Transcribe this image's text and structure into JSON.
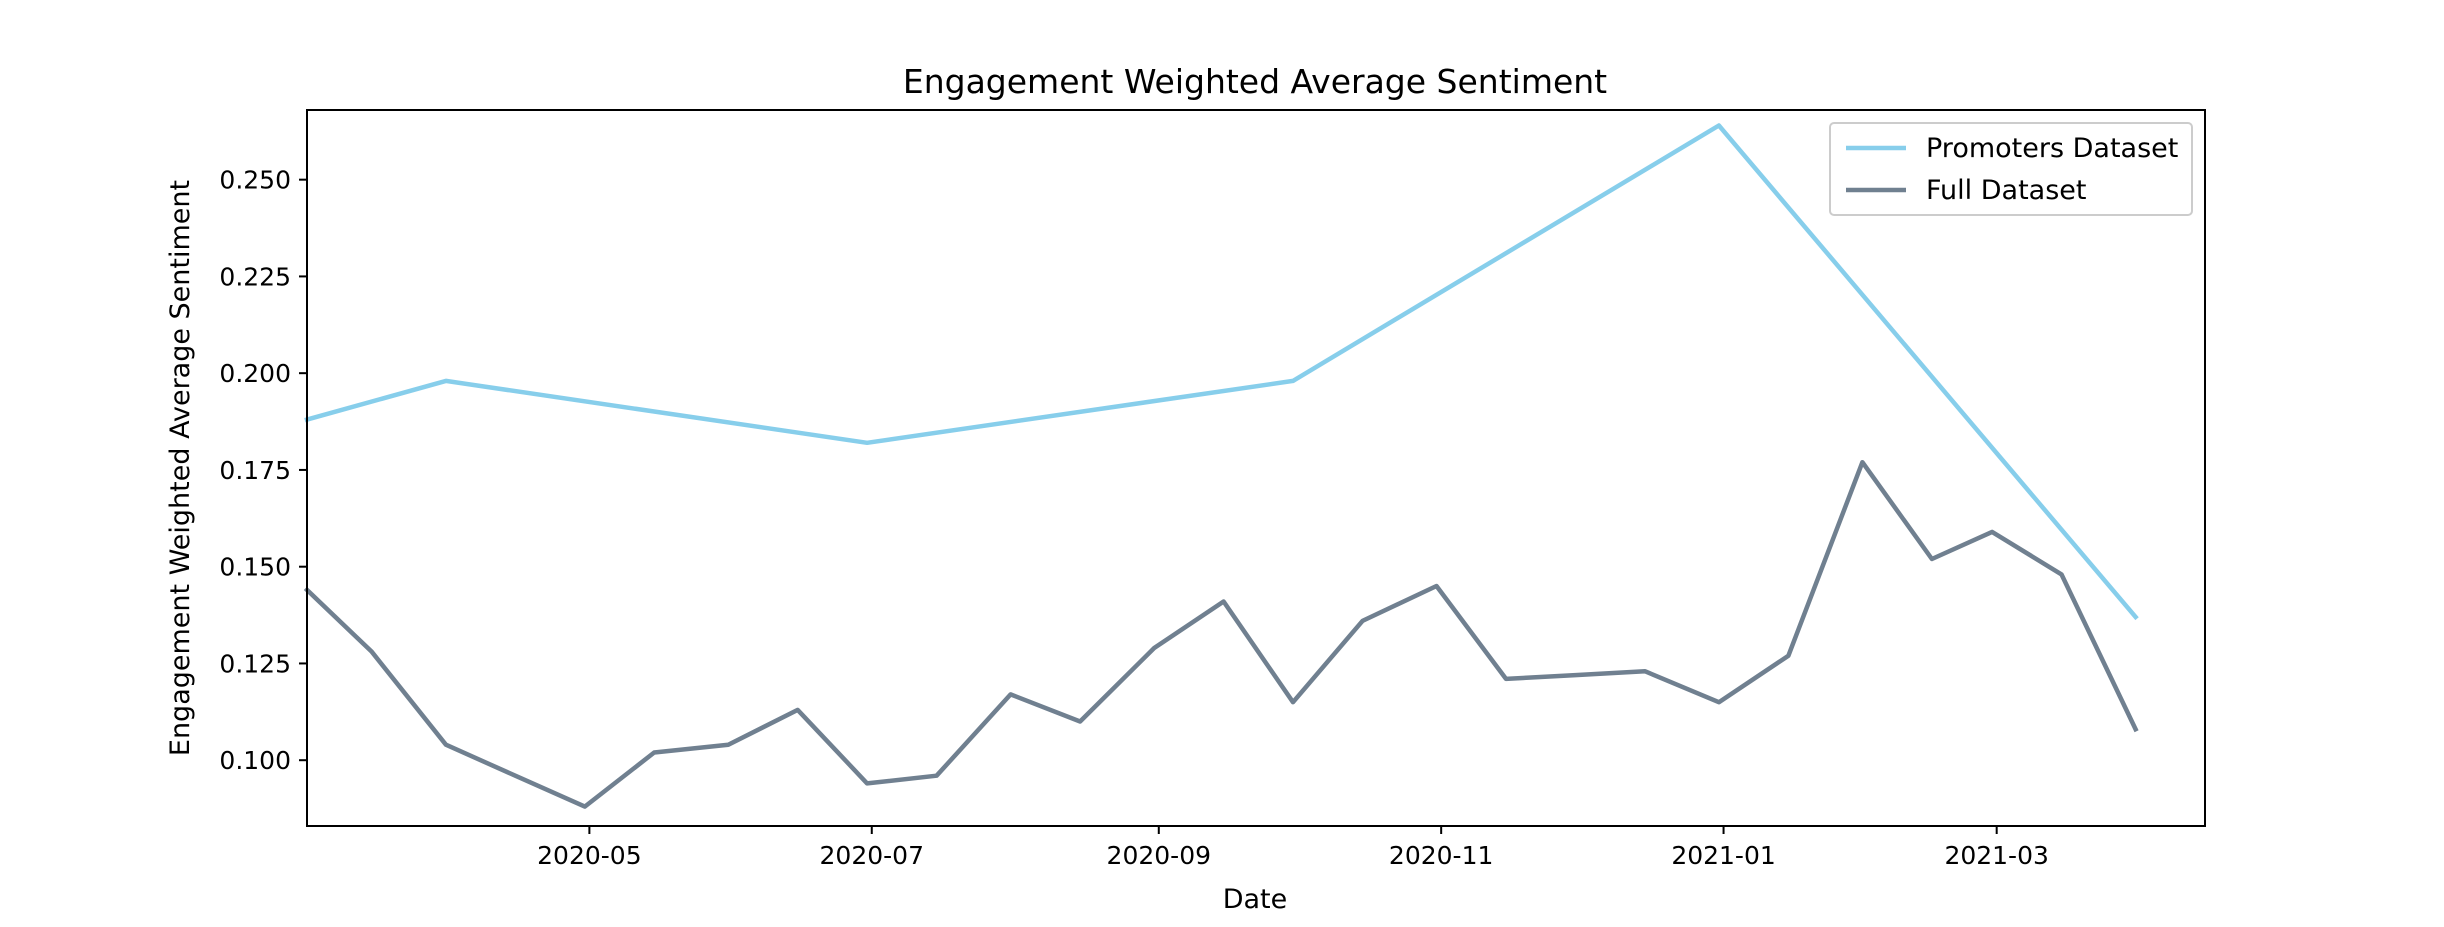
{
  "chart_data": {
    "type": "line",
    "title": "Engagement Weighted Average Sentiment",
    "xlabel": "Date",
    "ylabel": "Engagement Weighted Average Sentiment",
    "xlim": [
      "2020-03-01",
      "2021-04-15"
    ],
    "ylim": [
      0.083,
      0.268
    ],
    "x_ticks": [
      "2020-05",
      "2020-07",
      "2020-09",
      "2020-11",
      "2021-01",
      "2021-03"
    ],
    "y_ticks": [
      "0.100",
      "0.125",
      "0.150",
      "0.175",
      "0.200",
      "0.225",
      "0.250"
    ],
    "grid": false,
    "legend_position": "top-right",
    "series": [
      {
        "name": "Promoters Dataset",
        "color": "#87ceeb",
        "points": [
          [
            "2020-03-01",
            0.188
          ],
          [
            "2020-03-31",
            0.198
          ],
          [
            "2020-06-30",
            0.182
          ],
          [
            "2020-09-30",
            0.198
          ],
          [
            "2020-12-31",
            0.264
          ],
          [
            "2021-03-31",
            0.137
          ]
        ]
      },
      {
        "name": "Full Dataset",
        "color": "#708090",
        "points": [
          [
            "2020-03-01",
            0.144
          ],
          [
            "2020-03-15",
            0.128
          ],
          [
            "2020-03-31",
            0.104
          ],
          [
            "2020-04-15",
            0.096
          ],
          [
            "2020-04-30",
            0.088
          ],
          [
            "2020-05-15",
            0.102
          ],
          [
            "2020-05-31",
            0.104
          ],
          [
            "2020-06-15",
            0.113
          ],
          [
            "2020-06-30",
            0.094
          ],
          [
            "2020-07-15",
            0.096
          ],
          [
            "2020-07-31",
            0.117
          ],
          [
            "2020-08-15",
            0.11
          ],
          [
            "2020-08-31",
            0.129
          ],
          [
            "2020-09-15",
            0.141
          ],
          [
            "2020-09-30",
            0.115
          ],
          [
            "2020-10-15",
            0.136
          ],
          [
            "2020-10-31",
            0.145
          ],
          [
            "2020-11-15",
            0.121
          ],
          [
            "2020-11-30",
            0.122
          ],
          [
            "2020-12-15",
            0.123
          ],
          [
            "2020-12-31",
            0.115
          ],
          [
            "2021-01-15",
            0.127
          ],
          [
            "2021-01-31",
            0.177
          ],
          [
            "2021-02-15",
            0.152
          ],
          [
            "2021-02-28",
            0.159
          ],
          [
            "2021-03-15",
            0.148
          ],
          [
            "2021-03-31",
            0.108
          ]
        ]
      }
    ]
  }
}
